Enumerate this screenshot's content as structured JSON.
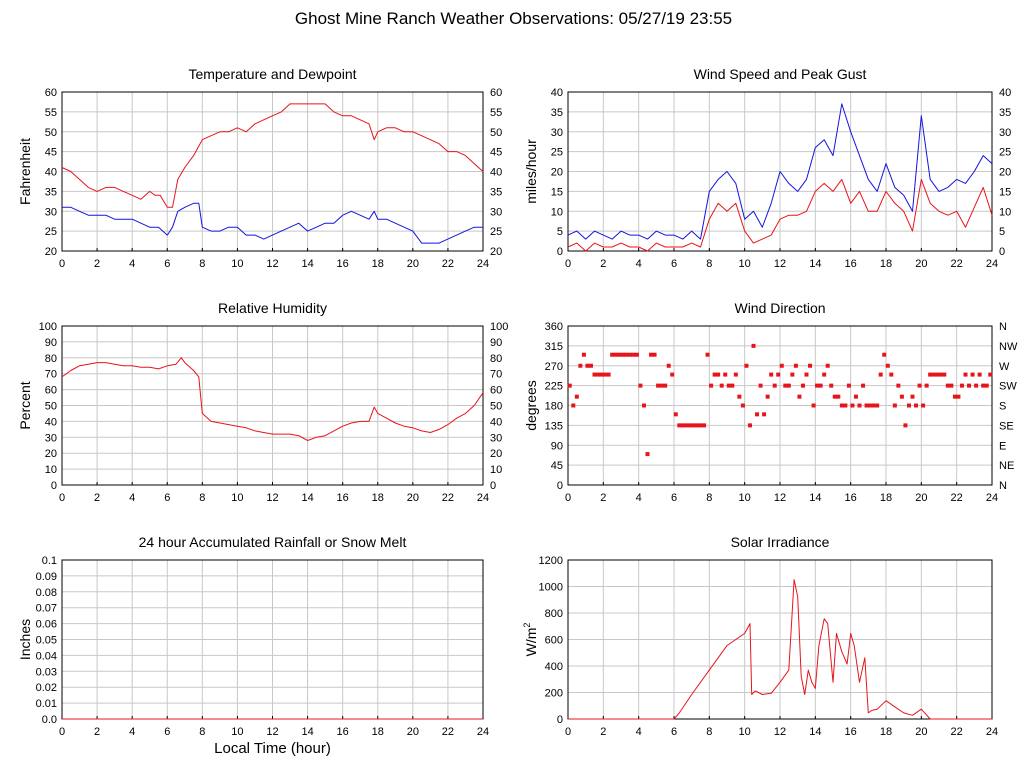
{
  "title": "Ghost Mine Ranch Weather Observations: 05/27/19 23:55",
  "colors": {
    "red": "#e8141c",
    "blue": "#1414e0",
    "grid": "#c8c8c8",
    "axis": "#000000"
  },
  "chart_data": [
    {
      "type": "line",
      "title": "Temperature and Dewpoint",
      "ylabel": "Fahrenheit",
      "xlabel": "",
      "xlim": [
        0,
        24
      ],
      "ylim": [
        20,
        60
      ],
      "xticks": [
        "0",
        "2",
        "4",
        "6",
        "8",
        "10",
        "12",
        "14",
        "16",
        "18",
        "20",
        "22",
        "24"
      ],
      "yticks": [
        "20",
        "25",
        "30",
        "35",
        "40",
        "45",
        "50",
        "55",
        "60"
      ],
      "yticks_right": [
        "20",
        "25",
        "30",
        "35",
        "40",
        "45",
        "50",
        "55",
        "60"
      ],
      "grid": true,
      "series": [
        {
          "color": "red",
          "x": [
            0,
            0.5,
            1,
            1.5,
            2,
            2.5,
            3,
            3.5,
            4,
            4.5,
            5,
            5.3,
            5.6,
            6,
            6.3,
            6.6,
            7,
            7.5,
            8,
            8.5,
            9,
            9.5,
            10,
            10.5,
            11,
            11.5,
            12,
            12.5,
            13,
            13.5,
            14,
            14.5,
            15,
            15.5,
            16,
            16.5,
            17,
            17.5,
            17.8,
            18,
            18.5,
            19,
            19.5,
            20,
            20.5,
            21,
            21.5,
            22,
            22.5,
            23,
            23.5,
            24
          ],
          "y": [
            41,
            40,
            38,
            36,
            35,
            36,
            36,
            35,
            34,
            33,
            35,
            34,
            34,
            31,
            31,
            38,
            41,
            44,
            48,
            49,
            50,
            50,
            51,
            50,
            52,
            53,
            54,
            55,
            57,
            57,
            57,
            57,
            57,
            55,
            54,
            54,
            53,
            52,
            48,
            50,
            51,
            51,
            50,
            50,
            49,
            48,
            47,
            45,
            45,
            44,
            42,
            40
          ]
        },
        {
          "color": "blue",
          "x": [
            0,
            0.5,
            1,
            1.5,
            2,
            2.5,
            3,
            3.5,
            4,
            4.5,
            5,
            5.5,
            6,
            6.3,
            6.6,
            7,
            7.5,
            7.8,
            8,
            8.5,
            9,
            9.5,
            10,
            10.5,
            11,
            11.5,
            12,
            12.5,
            13,
            13.5,
            14,
            14.5,
            15,
            15.5,
            16,
            16.5,
            17,
            17.5,
            17.8,
            18,
            18.5,
            19,
            19.5,
            20,
            20.5,
            21,
            21.5,
            22,
            22.5,
            23,
            23.5,
            24
          ],
          "y": [
            31,
            31,
            30,
            29,
            29,
            29,
            28,
            28,
            28,
            27,
            26,
            26,
            24,
            26,
            30,
            31,
            32,
            32,
            26,
            25,
            25,
            26,
            26,
            24,
            24,
            23,
            24,
            25,
            26,
            27,
            25,
            26,
            27,
            27,
            29,
            30,
            29,
            28,
            30,
            28,
            28,
            27,
            26,
            25,
            22,
            22,
            22,
            23,
            24,
            25,
            26,
            26
          ]
        }
      ]
    },
    {
      "type": "line",
      "title": "Wind Speed and Peak Gust",
      "ylabel": "miles/hour",
      "xlabel": "",
      "xlim": [
        0,
        24
      ],
      "ylim": [
        0,
        40
      ],
      "xticks": [
        "0",
        "2",
        "4",
        "6",
        "8",
        "10",
        "12",
        "14",
        "16",
        "18",
        "20",
        "22",
        "24"
      ],
      "yticks": [
        "0",
        "5",
        "10",
        "15",
        "20",
        "25",
        "30",
        "35",
        "40"
      ],
      "yticks_right": [
        "0",
        "5",
        "10",
        "15",
        "20",
        "25",
        "30",
        "35",
        "40"
      ],
      "grid": true,
      "series": [
        {
          "color": "red",
          "x": [
            0,
            0.5,
            1,
            1.5,
            2,
            2.5,
            3,
            3.5,
            4,
            4.5,
            5,
            5.5,
            6,
            6.5,
            7,
            7.5,
            8,
            8.5,
            9,
            9.5,
            10,
            10.5,
            11,
            11.5,
            12,
            12.5,
            13,
            13.5,
            14,
            14.5,
            15,
            15.5,
            16,
            16.5,
            17,
            17.5,
            18,
            18.5,
            19,
            19.5,
            20,
            20.5,
            21,
            21.5,
            22,
            22.5,
            23,
            23.5,
            24
          ],
          "y": [
            1,
            2,
            0,
            2,
            1,
            1,
            2,
            1,
            1,
            0,
            2,
            1,
            1,
            1,
            2,
            1,
            8,
            12,
            10,
            12,
            5,
            2,
            3,
            4,
            8,
            9,
            9,
            10,
            15,
            17,
            15,
            18,
            12,
            15,
            10,
            10,
            15,
            12,
            10,
            5,
            18,
            12,
            10,
            9,
            10,
            6,
            11,
            16,
            9
          ]
        },
        {
          "color": "blue",
          "x": [
            0,
            0.5,
            1,
            1.5,
            2,
            2.5,
            3,
            3.5,
            4,
            4.5,
            5,
            5.5,
            6,
            6.5,
            7,
            7.5,
            8,
            8.5,
            9,
            9.5,
            10,
            10.5,
            11,
            11.5,
            12,
            12.5,
            13,
            13.5,
            14,
            14.5,
            15,
            15.5,
            16,
            16.5,
            17,
            17.5,
            18,
            18.5,
            19,
            19.5,
            20,
            20.5,
            21,
            21.5,
            22,
            22.5,
            23,
            23.5,
            24
          ],
          "y": [
            4,
            5,
            3,
            5,
            4,
            3,
            5,
            4,
            4,
            3,
            5,
            4,
            4,
            3,
            5,
            3,
            15,
            18,
            20,
            17,
            8,
            10,
            6,
            12,
            20,
            17,
            15,
            18,
            26,
            28,
            24,
            37,
            30,
            24,
            18,
            15,
            22,
            16,
            14,
            10,
            34,
            18,
            15,
            16,
            18,
            17,
            20,
            24,
            22
          ]
        }
      ]
    },
    {
      "type": "line",
      "title": "Relative Humidity",
      "ylabel": "Percent",
      "xlabel": "",
      "xlim": [
        0,
        24
      ],
      "ylim": [
        0,
        100
      ],
      "xticks": [
        "0",
        "2",
        "4",
        "6",
        "8",
        "10",
        "12",
        "14",
        "16",
        "18",
        "20",
        "22",
        "24"
      ],
      "yticks": [
        "0",
        "10",
        "20",
        "30",
        "40",
        "50",
        "60",
        "70",
        "80",
        "90",
        "100"
      ],
      "yticks_right": [
        "0",
        "10",
        "20",
        "30",
        "40",
        "50",
        "60",
        "70",
        "80",
        "90",
        "100"
      ],
      "grid": true,
      "series": [
        {
          "color": "red",
          "x": [
            0,
            0.5,
            1,
            1.5,
            2,
            2.5,
            3,
            3.5,
            4,
            4.5,
            5,
            5.5,
            6,
            6.5,
            6.8,
            7,
            7.5,
            7.8,
            8,
            8.5,
            9,
            9.5,
            10,
            10.5,
            11,
            11.5,
            12,
            12.5,
            13,
            13.5,
            14,
            14.5,
            15,
            15.5,
            16,
            16.5,
            17,
            17.5,
            17.8,
            18,
            18.5,
            19,
            19.5,
            20,
            20.5,
            21,
            21.5,
            22,
            22.5,
            23,
            23.5,
            24
          ],
          "y": [
            68,
            72,
            75,
            76,
            77,
            77,
            76,
            75,
            75,
            74,
            74,
            73,
            75,
            76,
            80,
            77,
            72,
            68,
            45,
            40,
            39,
            38,
            37,
            36,
            34,
            33,
            32,
            32,
            32,
            31,
            28,
            30,
            31,
            34,
            37,
            39,
            40,
            40,
            49,
            45,
            42,
            39,
            37,
            36,
            34,
            33,
            35,
            38,
            42,
            45,
            50,
            58
          ]
        }
      ]
    },
    {
      "type": "scatter",
      "title": "Wind Direction",
      "ylabel": "degrees",
      "xlabel": "",
      "xlim": [
        0,
        24
      ],
      "ylim": [
        0,
        360
      ],
      "xticks": [
        "0",
        "2",
        "4",
        "6",
        "8",
        "10",
        "12",
        "14",
        "16",
        "18",
        "20",
        "22",
        "24"
      ],
      "yticks": [
        "0",
        "45",
        "90",
        "135",
        "180",
        "225",
        "270",
        "315",
        "360"
      ],
      "yticks_right": [
        "N",
        "NE",
        "E",
        "SE",
        "S",
        "SW",
        "W",
        "NW",
        "N"
      ],
      "grid": true,
      "series": [
        {
          "color": "red",
          "x": [
            0.1,
            0.3,
            0.5,
            0.7,
            0.9,
            1.1,
            1.3,
            1.5,
            1.7,
            1.9,
            2.1,
            2.3,
            2.5,
            2.7,
            2.9,
            3.1,
            3.3,
            3.5,
            3.7,
            3.9,
            4.1,
            4.3,
            4.5,
            4.7,
            4.9,
            5.1,
            5.3,
            5.5,
            5.7,
            5.9,
            6.1,
            6.3,
            6.5,
            6.7,
            6.9,
            7.1,
            7.3,
            7.5,
            7.7,
            7.9,
            8.1,
            8.3,
            8.5,
            8.7,
            8.9,
            9.1,
            9.3,
            9.5,
            9.7,
            9.9,
            10.1,
            10.3,
            10.5,
            10.7,
            10.9,
            11.1,
            11.3,
            11.5,
            11.7,
            11.9,
            12.1,
            12.3,
            12.5,
            12.7,
            12.9,
            13.1,
            13.3,
            13.5,
            13.7,
            13.9,
            14.1,
            14.3,
            14.5,
            14.7,
            14.9,
            15.1,
            15.3,
            15.5,
            15.7,
            15.9,
            16.1,
            16.3,
            16.5,
            16.7,
            16.9,
            17.1,
            17.3,
            17.5,
            17.7,
            17.9,
            18.1,
            18.3,
            18.5,
            18.7,
            18.9,
            19.1,
            19.3,
            19.5,
            19.7,
            19.9,
            20.1,
            20.3,
            20.5,
            20.7,
            20.9,
            21.1,
            21.3,
            21.5,
            21.7,
            21.9,
            22.1,
            22.3,
            22.5,
            22.7,
            22.9,
            23.1,
            23.3,
            23.5,
            23.7,
            23.9
          ],
          "y": [
            225,
            180,
            200,
            270,
            295,
            270,
            270,
            250,
            250,
            250,
            250,
            250,
            295,
            295,
            295,
            295,
            295,
            295,
            295,
            295,
            225,
            180,
            70,
            295,
            295,
            225,
            225,
            225,
            270,
            250,
            160,
            135,
            135,
            135,
            135,
            135,
            135,
            135,
            135,
            295,
            225,
            250,
            250,
            225,
            250,
            225,
            225,
            250,
            200,
            180,
            270,
            135,
            315,
            160,
            225,
            160,
            200,
            250,
            225,
            250,
            270,
            225,
            225,
            250,
            270,
            200,
            225,
            250,
            270,
            180,
            225,
            225,
            250,
            270,
            225,
            200,
            200,
            180,
            180,
            225,
            180,
            200,
            180,
            225,
            180,
            180,
            180,
            180,
            250,
            295,
            270,
            250,
            180,
            225,
            200,
            135,
            180,
            200,
            180,
            225,
            180,
            225,
            250,
            250,
            250,
            250,
            250,
            225,
            225,
            200,
            200,
            225,
            250,
            225,
            250,
            225,
            250,
            225,
            225,
            250
          ]
        }
      ]
    },
    {
      "type": "line",
      "title": "24 hour Accumulated Rainfall or Snow Melt",
      "ylabel": "Inches",
      "xlabel": "Local Time (hour)",
      "xlim": [
        0,
        24
      ],
      "ylim": [
        0,
        0.1
      ],
      "xticks": [
        "0",
        "2",
        "4",
        "6",
        "8",
        "10",
        "12",
        "14",
        "16",
        "18",
        "20",
        "22",
        "24"
      ],
      "yticks": [
        "0.0",
        "0.01",
        "0.02",
        "0.03",
        "0.04",
        "0.05",
        "0.06",
        "0.07",
        "0.08",
        "0.09",
        "0.1"
      ],
      "yticks_right": [],
      "grid": true,
      "series": [
        {
          "color": "red",
          "x": [
            0,
            24
          ],
          "y": [
            0,
            0
          ]
        }
      ]
    },
    {
      "type": "line",
      "title": "Solar Irradiance",
      "ylabel": "W/m",
      "ylabel_sup": "2",
      "xlabel": "",
      "xlim": [
        0,
        24
      ],
      "ylim": [
        0,
        1300
      ],
      "xticks": [
        "0",
        "2",
        "4",
        "6",
        "8",
        "10",
        "12",
        "14",
        "16",
        "18",
        "20",
        "22",
        "24"
      ],
      "yticks": [
        "0",
        "200",
        "400",
        "600",
        "800",
        "1000",
        "1200"
      ],
      "yticks_right": [],
      "grid": true,
      "series": [
        {
          "color": "red",
          "x": [
            0,
            6,
            6.3,
            7,
            8,
            9,
            9.5,
            10,
            10.3,
            10.4,
            10.6,
            11,
            11.5,
            12,
            12.5,
            12.8,
            13,
            13.2,
            13.4,
            13.6,
            13.8,
            14,
            14.2,
            14.5,
            14.7,
            15,
            15.2,
            15.5,
            15.8,
            16,
            16.2,
            16.5,
            16.8,
            17,
            17.2,
            17.5,
            18,
            18.5,
            19,
            19.5,
            20,
            20.5,
            24
          ],
          "y": [
            0,
            0,
            50,
            200,
            400,
            600,
            650,
            700,
            780,
            200,
            230,
            200,
            210,
            300,
            400,
            1140,
            1000,
            350,
            200,
            400,
            300,
            250,
            600,
            820,
            780,
            300,
            700,
            550,
            450,
            700,
            600,
            300,
            500,
            50,
            70,
            80,
            150,
            100,
            50,
            30,
            80,
            0,
            0
          ]
        }
      ]
    }
  ]
}
